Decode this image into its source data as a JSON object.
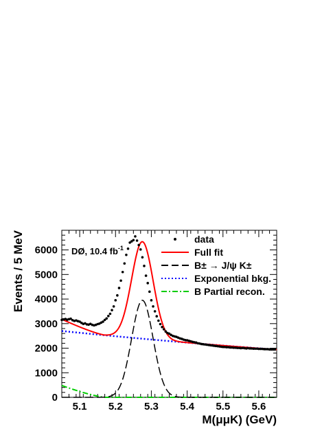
{
  "chart_data": {
    "type": "line",
    "xlabel": "M(μμK) (GeV)",
    "ylabel": "Events / 5 MeV",
    "xlim": [
      5.05,
      5.65
    ],
    "ylim": [
      0,
      6800
    ],
    "x_ticks": [
      "5.1",
      "5.2",
      "5.3",
      "5.4",
      "5.5",
      "5.6"
    ],
    "y_ticks": [
      "0",
      "1000",
      "2000",
      "3000",
      "4000",
      "5000",
      "6000"
    ],
    "annotation": "DØ, 10.4 fb",
    "annotation_sup": "-1",
    "legend": [
      {
        "label": "data",
        "style": "marker",
        "color": "#000000"
      },
      {
        "label": "Full fit",
        "style": "solid",
        "color": "#ff0000"
      },
      {
        "label": "B± → J/ψ K±",
        "style": "dashed",
        "color": "#000000"
      },
      {
        "label": "Exponential bkg.",
        "style": "dotted",
        "color": "#0000ff"
      },
      {
        "label": "B Partial recon.",
        "style": "dashdot",
        "color": "#00cc00"
      }
    ],
    "legend_position": "top-right",
    "series": [
      {
        "name": "data",
        "x": [
          5.05,
          5.055,
          5.06,
          5.065,
          5.07,
          5.075,
          5.08,
          5.085,
          5.09,
          5.095,
          5.1,
          5.105,
          5.11,
          5.115,
          5.12,
          5.125,
          5.13,
          5.135,
          5.14,
          5.145,
          5.15,
          5.155,
          5.16,
          5.165,
          5.17,
          5.175,
          5.18,
          5.185,
          5.19,
          5.195,
          5.2,
          5.205,
          5.21,
          5.215,
          5.22,
          5.225,
          5.23,
          5.235,
          5.24,
          5.245,
          5.25,
          5.255,
          5.26,
          5.265,
          5.27,
          5.275,
          5.28,
          5.285,
          5.29,
          5.295,
          5.3,
          5.305,
          5.31,
          5.315,
          5.32,
          5.325,
          5.33,
          5.335,
          5.34,
          5.345,
          5.35,
          5.355,
          5.36,
          5.365,
          5.37,
          5.375,
          5.38,
          5.385,
          5.39,
          5.395,
          5.4,
          5.405,
          5.41,
          5.415,
          5.42,
          5.425,
          5.43,
          5.435,
          5.44,
          5.445,
          5.45,
          5.455,
          5.46,
          5.465,
          5.47,
          5.475,
          5.48,
          5.485,
          5.49,
          5.495,
          5.5,
          5.505,
          5.51,
          5.515,
          5.52,
          5.525,
          5.53,
          5.535,
          5.54,
          5.545,
          5.55,
          5.555,
          5.56,
          5.565,
          5.57,
          5.575,
          5.58,
          5.585,
          5.59,
          5.595,
          5.6,
          5.605,
          5.61,
          5.615,
          5.62,
          5.625,
          5.63,
          5.635,
          5.64,
          5.645
        ],
        "y": [
          3150,
          3170,
          3190,
          3160,
          3180,
          3200,
          3140,
          3110,
          3130,
          3100,
          3080,
          3030,
          2990,
          3010,
          2970,
          2960,
          2990,
          2950,
          2930,
          2950,
          2980,
          3000,
          3040,
          3080,
          3150,
          3210,
          3310,
          3400,
          3550,
          3700,
          3950,
          4150,
          4450,
          4750,
          5100,
          5450,
          5800,
          6050,
          6300,
          6350,
          6400,
          6550,
          6380,
          6200,
          6020,
          5700,
          5350,
          4950,
          4650,
          4300,
          3950,
          3700,
          3500,
          3300,
          3120,
          2980,
          2860,
          2770,
          2680,
          2620,
          2590,
          2540,
          2500,
          2480,
          2460,
          2430,
          2400,
          2380,
          2350,
          2330,
          2320,
          2300,
          2280,
          2260,
          2240,
          2230,
          2200,
          2190,
          2170,
          2160,
          2150,
          2140,
          2130,
          2120,
          2110,
          2100,
          2090,
          2080,
          2070,
          2060,
          2050,
          2050,
          2040,
          2040,
          2030,
          2030,
          2020,
          2020,
          2010,
          2010,
          2000,
          2010,
          2000,
          1990,
          2000,
          1990,
          1990,
          1980,
          1980,
          1980,
          1970,
          1970,
          1970,
          1960,
          1960,
          1960,
          1950,
          1950,
          1950,
          1950
        ]
      }
    ]
  }
}
